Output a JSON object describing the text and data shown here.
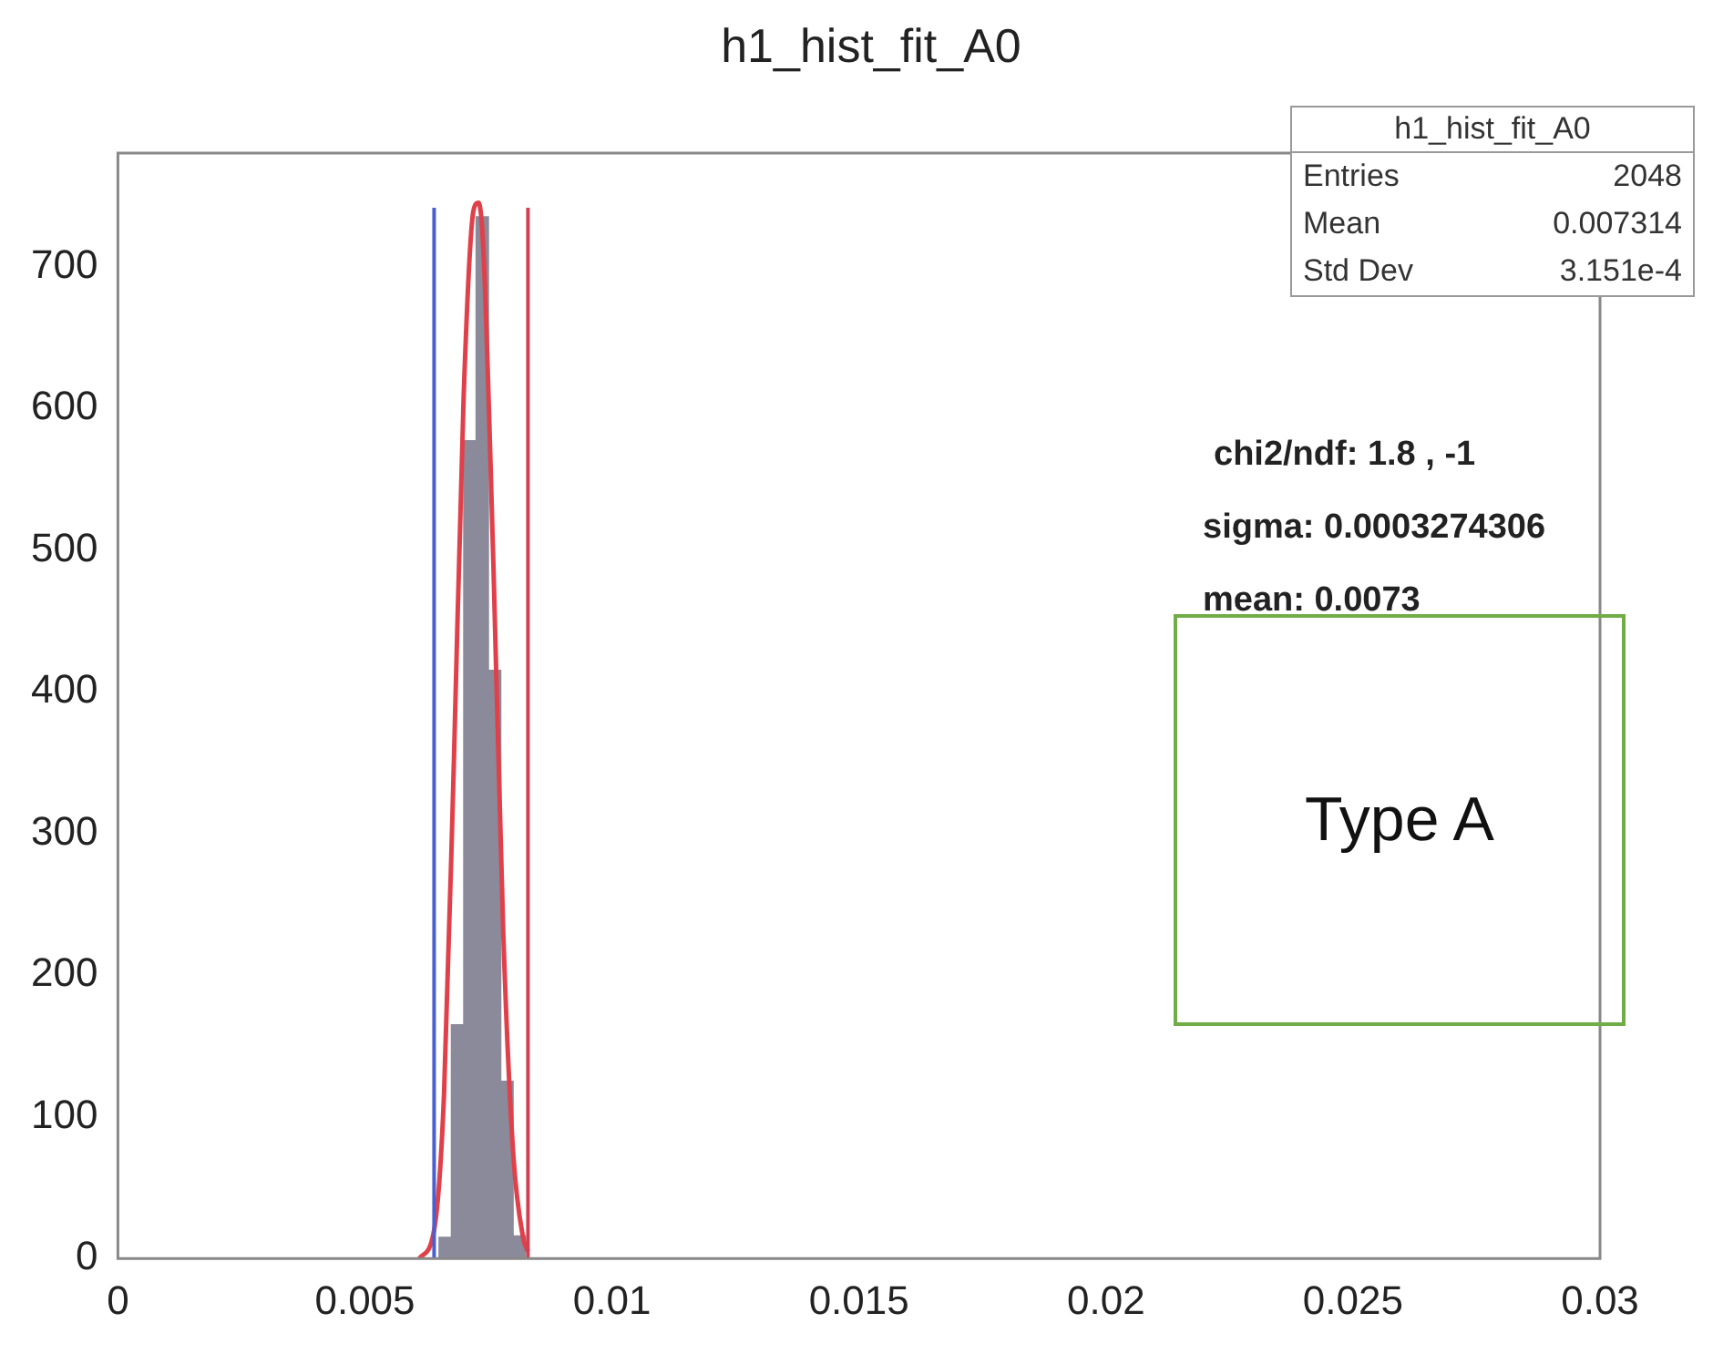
{
  "chart_data": {
    "type": "histogram",
    "title": "h1_hist_fit_A0",
    "xlim": [
      0,
      0.03
    ],
    "xticks": [
      0,
      0.005,
      0.01,
      0.015,
      0.02,
      0.025,
      0.03
    ],
    "ylim": [
      0,
      780
    ],
    "yticks": [
      0,
      100,
      200,
      300,
      400,
      500,
      600,
      700
    ],
    "grid": false,
    "bins": [
      0.0065,
      0.00675,
      0.007,
      0.00725,
      0.0075,
      0.00775,
      0.008,
      0.00825
    ],
    "values": [
      15,
      165,
      577,
      735,
      415,
      125,
      16
    ],
    "color": "#8a8a9a",
    "series": [
      {
        "type": "line",
        "color": "#e0404a",
        "x": [
          0.0061,
          0.0064,
          0.0066,
          0.0068,
          0.007,
          0.0072,
          0.0073,
          0.0074,
          0.0076,
          0.0078,
          0.008,
          0.0082,
          0.0083
        ],
        "values": [
          0,
          20,
          115,
          350,
          610,
          740,
          745,
          710,
          490,
          230,
          75,
          15,
          5
        ]
      }
    ],
    "ref_lines": [
      {
        "axis": "x",
        "value": 0.0064,
        "color": "#4a5fd0"
      },
      {
        "axis": "x",
        "value": 0.0083,
        "color": "#d04050"
      }
    ],
    "annotations": [
      "h1_hist_fit_A0",
      "Entries 2048",
      "Mean 0.007314",
      "Std Dev 3.151e-4",
      "chi2/ndf: 1.8 , -1",
      "sigma: 0.0003274306",
      "mean: 0.0073",
      "Type A"
    ]
  }
}
